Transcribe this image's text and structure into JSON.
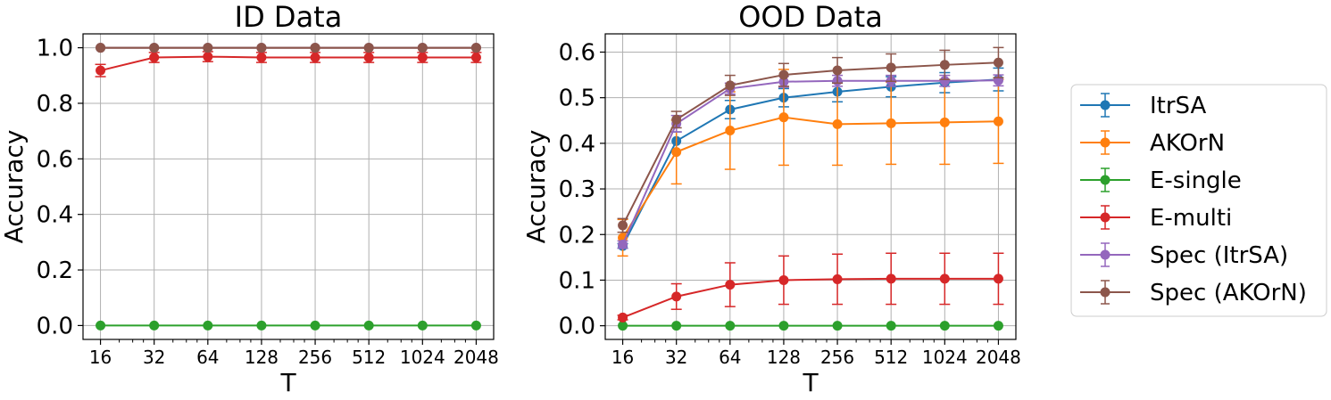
{
  "chart_data": [
    {
      "type": "line",
      "title": "ID Data",
      "xlabel": "T",
      "ylabel": "Accuracy",
      "x_scale": "log2",
      "x": [
        16,
        32,
        64,
        128,
        256,
        512,
        1024,
        2048
      ],
      "x_tick_labels": [
        "16",
        "32",
        "64",
        "128",
        "256",
        "512",
        "1024",
        "2048"
      ],
      "y_ticks": [
        0.0,
        0.2,
        0.4,
        0.6,
        0.8,
        1.0
      ],
      "y_tick_labels": [
        "0.0",
        "0.2",
        "0.4",
        "0.6",
        "0.8",
        "1.0"
      ],
      "ylim": [
        -0.05,
        1.05
      ],
      "grid": true,
      "series": [
        {
          "name": "ItrSA",
          "color": "#1f77b4",
          "values": [
            1.0,
            1.0,
            1.0,
            1.0,
            1.0,
            1.0,
            1.0,
            1.0
          ],
          "errors": [
            0.0,
            0.0,
            0.0,
            0.0,
            0.0,
            0.0,
            0.0,
            0.0
          ]
        },
        {
          "name": "AKOrN",
          "color": "#ff7f0e",
          "values": [
            1.0,
            1.0,
            1.0,
            1.0,
            1.0,
            1.0,
            1.0,
            1.0
          ],
          "errors": [
            0.0,
            0.0,
            0.0,
            0.0,
            0.0,
            0.0,
            0.0,
            0.0
          ]
        },
        {
          "name": "E-single",
          "color": "#2ca02c",
          "values": [
            0.0,
            0.0,
            0.0,
            0.0,
            0.0,
            0.0,
            0.0,
            0.0
          ],
          "errors": [
            0.0,
            0.0,
            0.0,
            0.0,
            0.0,
            0.0,
            0.0,
            0.0
          ]
        },
        {
          "name": "E-multi",
          "color": "#d62728",
          "values": [
            0.918,
            0.965,
            0.968,
            0.965,
            0.965,
            0.965,
            0.965,
            0.965
          ],
          "errors": [
            0.022,
            0.018,
            0.018,
            0.018,
            0.018,
            0.018,
            0.018,
            0.018
          ]
        },
        {
          "name": "Spec (ItrSA)",
          "color": "#9467bd",
          "values": [
            1.0,
            1.0,
            1.0,
            1.0,
            1.0,
            1.0,
            1.0,
            1.0
          ],
          "errors": [
            0.0,
            0.0,
            0.0,
            0.0,
            0.0,
            0.0,
            0.0,
            0.0
          ]
        },
        {
          "name": "Spec (AKOrN)",
          "color": "#8c564b",
          "values": [
            1.0,
            1.0,
            1.0,
            1.0,
            1.0,
            1.0,
            1.0,
            1.0
          ],
          "errors": [
            0.0,
            0.0,
            0.0,
            0.0,
            0.0,
            0.0,
            0.0,
            0.0
          ]
        }
      ]
    },
    {
      "type": "line",
      "title": "OOD Data",
      "xlabel": "T",
      "ylabel": "Accuracy",
      "x_scale": "log2",
      "x": [
        16,
        32,
        64,
        128,
        256,
        512,
        1024,
        2048
      ],
      "x_tick_labels": [
        "16",
        "32",
        "64",
        "128",
        "256",
        "512",
        "1024",
        "2048"
      ],
      "y_ticks": [
        0.0,
        0.1,
        0.2,
        0.3,
        0.4,
        0.5,
        0.6
      ],
      "y_tick_labels": [
        "0.0",
        "0.1",
        "0.2",
        "0.3",
        "0.4",
        "0.5",
        "0.6"
      ],
      "ylim": [
        -0.03,
        0.64
      ],
      "grid": true,
      "series": [
        {
          "name": "ItrSA",
          "color": "#1f77b4",
          "values": [
            0.175,
            0.405,
            0.474,
            0.5,
            0.513,
            0.524,
            0.533,
            0.54
          ],
          "errors": [
            0.005,
            0.02,
            0.02,
            0.02,
            0.022,
            0.022,
            0.022,
            0.025
          ]
        },
        {
          "name": "AKOrN",
          "color": "#ff7f0e",
          "values": [
            0.193,
            0.381,
            0.428,
            0.457,
            0.442,
            0.444,
            0.446,
            0.448
          ],
          "errors": [
            0.04,
            0.07,
            0.085,
            0.105,
            0.09,
            0.09,
            0.092,
            0.092
          ]
        },
        {
          "name": "E-single",
          "color": "#2ca02c",
          "values": [
            0.0,
            0.0,
            0.0,
            0.0,
            0.0,
            0.0,
            0.0,
            0.0
          ],
          "errors": [
            0.0,
            0.0,
            0.0,
            0.0,
            0.0,
            0.0,
            0.0,
            0.0
          ]
        },
        {
          "name": "E-multi",
          "color": "#d62728",
          "values": [
            0.018,
            0.064,
            0.09,
            0.1,
            0.102,
            0.103,
            0.103,
            0.103
          ],
          "errors": [
            0.005,
            0.028,
            0.048,
            0.053,
            0.055,
            0.056,
            0.056,
            0.056
          ]
        },
        {
          "name": "Spec (ItrSA)",
          "color": "#9467bd",
          "values": [
            0.178,
            0.443,
            0.52,
            0.535,
            0.537,
            0.537,
            0.537,
            0.538
          ],
          "errors": [
            0.008,
            0.018,
            0.012,
            0.012,
            0.012,
            0.012,
            0.012,
            0.012
          ]
        },
        {
          "name": "Spec (AKOrN)",
          "color": "#8c564b",
          "values": [
            0.22,
            0.452,
            0.527,
            0.55,
            0.56,
            0.566,
            0.572,
            0.577
          ],
          "errors": [
            0.015,
            0.018,
            0.022,
            0.025,
            0.028,
            0.03,
            0.032,
            0.033
          ]
        }
      ]
    }
  ],
  "legend": {
    "placement": "right",
    "items": [
      "ItrSA",
      "AKOrN",
      "E-single",
      "E-multi",
      "Spec (ItrSA)",
      "Spec (AKOrN)"
    ]
  }
}
